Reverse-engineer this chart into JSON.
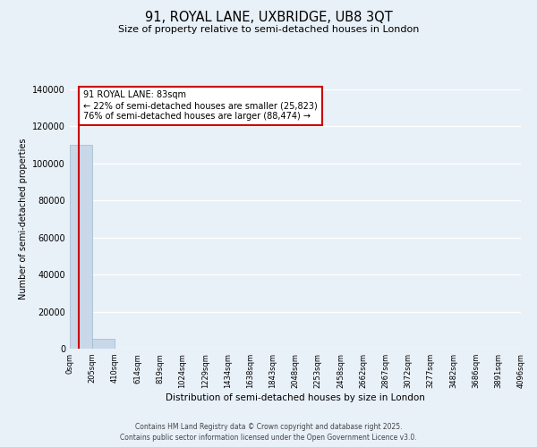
{
  "title": "91, ROYAL LANE, UXBRIDGE, UB8 3QT",
  "subtitle": "Size of property relative to semi-detached houses in London",
  "xlabel": "Distribution of semi-detached houses by size in London",
  "ylabel": "Number of semi-detached properties",
  "property_label": "91 ROYAL LANE: 83sqm",
  "pct_smaller": 22,
  "pct_larger": 76,
  "count_smaller": 25823,
  "count_larger": 88474,
  "bin_edges": [
    0,
    205,
    410,
    614,
    819,
    1024,
    1229,
    1434,
    1638,
    1843,
    2048,
    2253,
    2458,
    2662,
    2867,
    3072,
    3277,
    3482,
    3686,
    3891,
    4096
  ],
  "bin_labels": [
    "0sqm",
    "205sqm",
    "410sqm",
    "614sqm",
    "819sqm",
    "1024sqm",
    "1229sqm",
    "1434sqm",
    "1638sqm",
    "1843sqm",
    "2048sqm",
    "2253sqm",
    "2458sqm",
    "2662sqm",
    "2867sqm",
    "3072sqm",
    "3277sqm",
    "3482sqm",
    "3686sqm",
    "3891sqm",
    "4096sqm"
  ],
  "bar_values": [
    110000,
    5500,
    0,
    0,
    0,
    0,
    0,
    0,
    0,
    0,
    0,
    0,
    0,
    0,
    0,
    0,
    0,
    0,
    0,
    0
  ],
  "bar_color": "#c8d8e8",
  "bar_edge_color": "#a0b8cc",
  "vline_x": 83,
  "vline_color": "#cc0000",
  "ylim": [
    0,
    140000
  ],
  "yticks": [
    0,
    20000,
    40000,
    60000,
    80000,
    100000,
    120000,
    140000
  ],
  "bg_color": "#e8f0f8",
  "grid_color": "#ffffff",
  "ann_box_color": "#ffffff",
  "ann_box_edge": "#cc0000",
  "footer_line1": "Contains HM Land Registry data © Crown copyright and database right 2025.",
  "footer_line2": "Contains public sector information licensed under the Open Government Licence v3.0."
}
